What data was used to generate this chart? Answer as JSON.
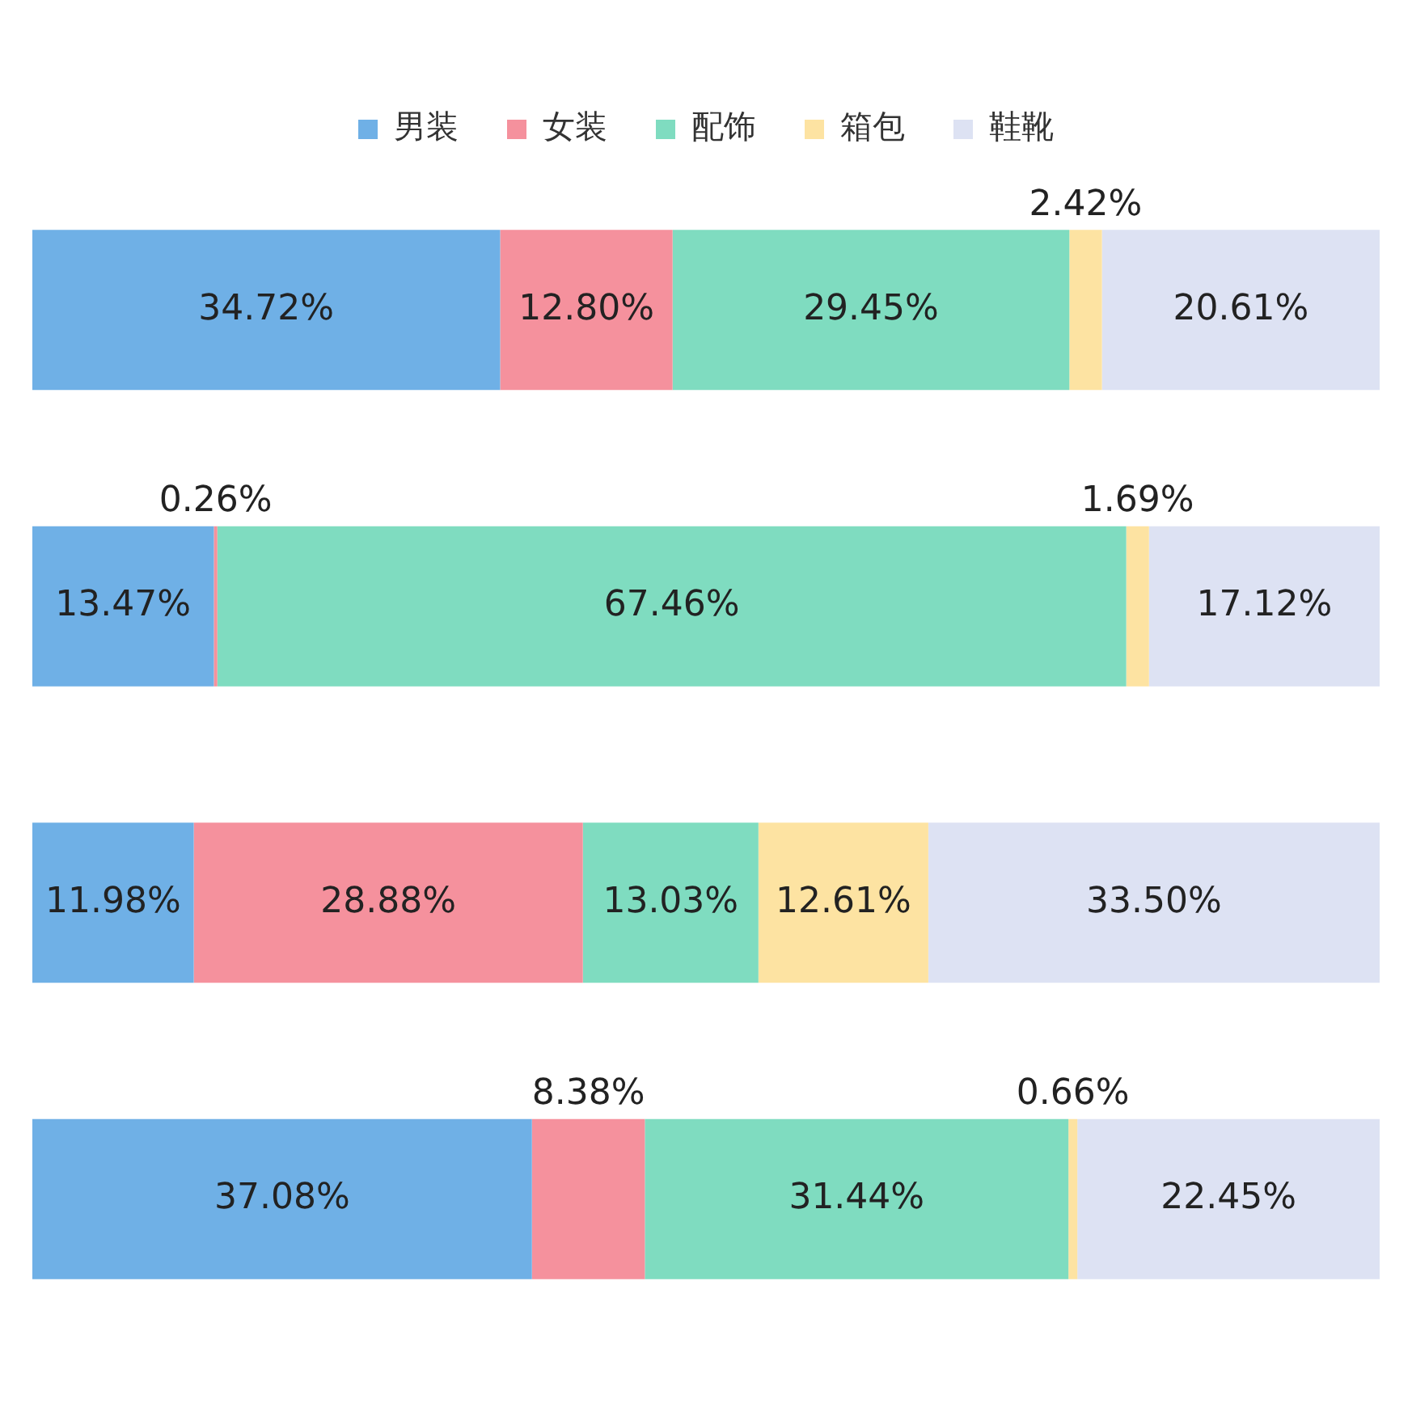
{
  "chart_data": {
    "type": "bar",
    "orientation": "horizontal",
    "stacked": true,
    "categories": [
      null,
      null,
      null,
      null
    ],
    "xlim": [
      0,
      100
    ],
    "tick_labels": false,
    "grid": false,
    "legend": "top",
    "series": [
      {
        "name": "男装",
        "color": "#6fb0e6",
        "values": [
          34.72,
          13.47,
          11.98,
          37.08
        ],
        "value_labels": [
          "34.72%",
          "13.47%",
          "11.98%",
          "37.08%"
        ]
      },
      {
        "name": "女装",
        "color": "#f5919d",
        "values": [
          12.8,
          0.26,
          28.88,
          8.38
        ],
        "value_labels": [
          "12.80%",
          "0.26%",
          "28.88%",
          "8.38%"
        ]
      },
      {
        "name": "配饰",
        "color": "#7fdcc0",
        "values": [
          29.45,
          67.46,
          13.03,
          31.44
        ],
        "value_labels": [
          "29.45%",
          "67.46%",
          "13.03%",
          "31.44%"
        ]
      },
      {
        "name": "箱包",
        "color": "#fde3a2",
        "values": [
          2.42,
          1.69,
          12.61,
          0.66
        ],
        "value_labels": [
          "2.42%",
          "1.69%",
          "12.61%",
          "0.66%"
        ]
      },
      {
        "name": "鞋靴",
        "color": "#dde2f3",
        "values": [
          20.61,
          17.12,
          33.5,
          22.45
        ],
        "value_labels": [
          "20.61%",
          "17.12%",
          "33.50%",
          "22.45%"
        ]
      }
    ]
  }
}
